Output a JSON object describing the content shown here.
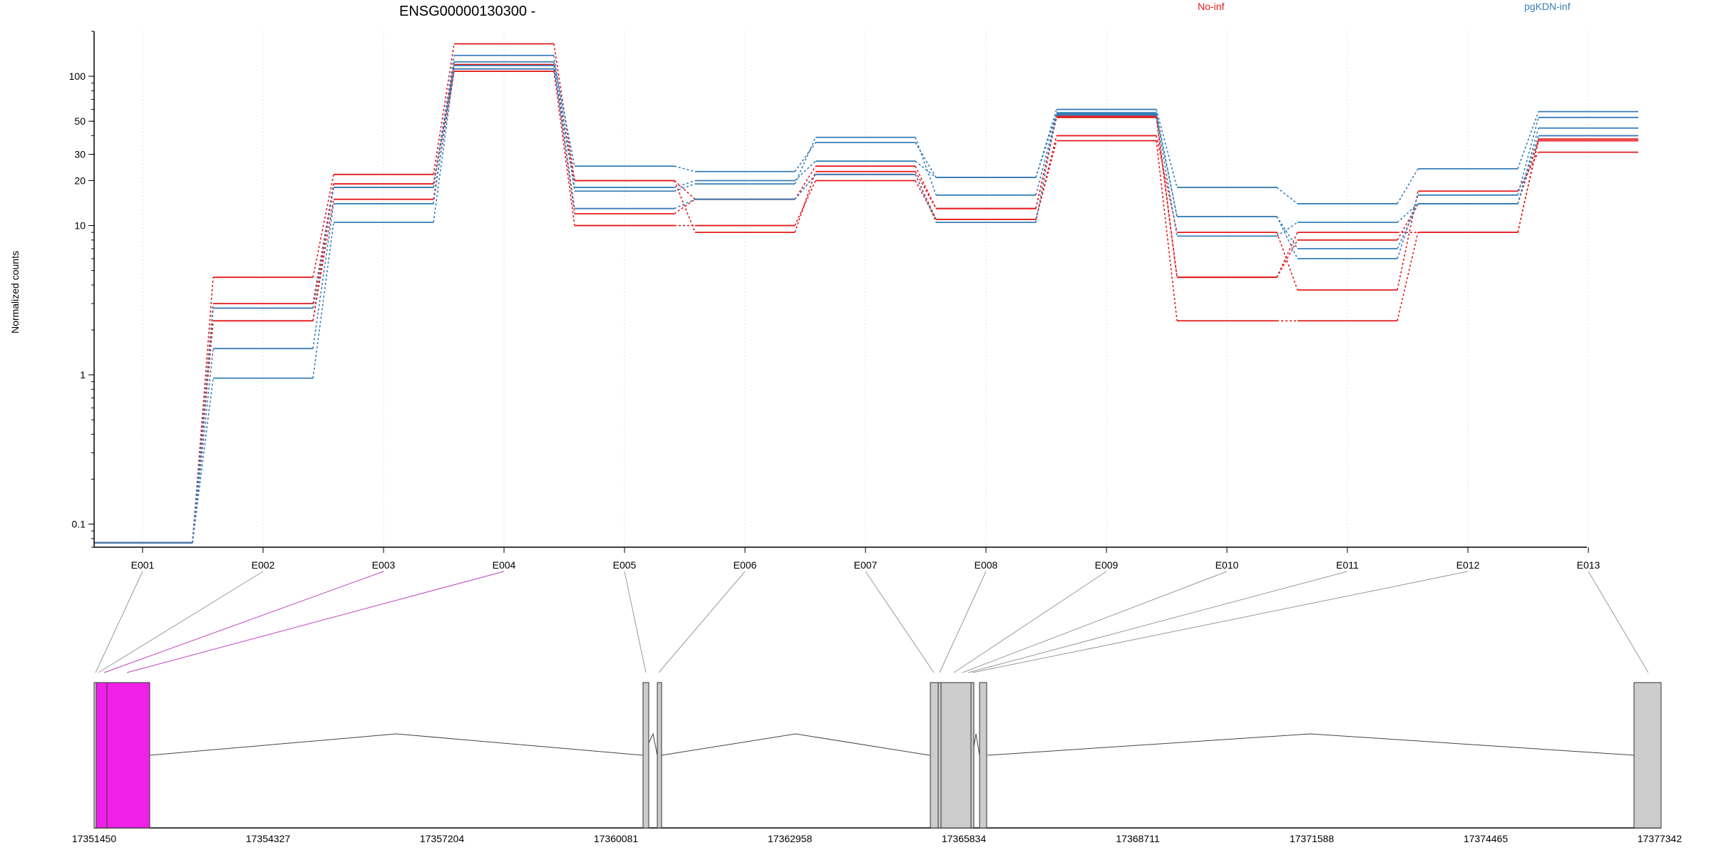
{
  "chart_data": {
    "type": "line",
    "title": "ENSG00000130300 -",
    "ylabel": "Normalized counts",
    "yscale": "log",
    "ylim": [
      0.07,
      200
    ],
    "ytick_labels": [
      "0.1",
      "1",
      "10",
      "20",
      "30",
      "50",
      "100"
    ],
    "ytick_values": [
      0.1,
      1,
      10,
      20,
      30,
      50,
      100
    ],
    "grid": "vertical",
    "legend_position": "top",
    "categories": [
      "E001",
      "E002",
      "E003",
      "E004",
      "E005",
      "E006",
      "E007",
      "E008",
      "E009",
      "E010",
      "E011",
      "E012",
      "E013"
    ],
    "legend": [
      {
        "name": "No-inf",
        "color": "#e41a1c"
      },
      {
        "name": "pgKDN-inf",
        "color": "#377eb8"
      }
    ],
    "series": [
      {
        "group": "No-inf",
        "color": "#e41a1c",
        "values": [
          0.075,
          4.5,
          22,
          165,
          20,
          15,
          25,
          13,
          53,
          4.5,
          9,
          9,
          38
        ]
      },
      {
        "group": "No-inf",
        "color": "#e41a1c",
        "values": [
          0.075,
          3.0,
          19,
          120,
          12,
          15,
          22,
          11,
          40,
          9,
          3.7,
          17,
          31
        ]
      },
      {
        "group": "No-inf",
        "color": "#e41a1c",
        "values": [
          0.075,
          2.3,
          15,
          108,
          10,
          10,
          20,
          11,
          37,
          2.3,
          2.3,
          9,
          37
        ]
      },
      {
        "group": "No-inf",
        "color": "#e41a1c",
        "values": [
          0.075,
          2.3,
          19,
          112,
          20,
          9,
          23,
          13,
          54,
          4.5,
          8,
          14,
          37
        ]
      },
      {
        "group": "pgKDN-inf",
        "color": "#377eb8",
        "values": [
          0.075,
          1.5,
          14,
          125,
          25,
          23,
          36,
          21,
          60,
          18,
          14,
          24,
          58
        ]
      },
      {
        "group": "pgKDN-inf",
        "color": "#377eb8",
        "values": [
          0.075,
          0.95,
          10.5,
          112,
          18,
          20,
          27,
          21,
          56,
          11.5,
          6,
          16,
          53
        ]
      },
      {
        "group": "pgKDN-inf",
        "color": "#377eb8",
        "values": [
          0.075,
          2.8,
          18,
          138,
          17,
          19,
          39,
          16,
          55,
          8.5,
          10.5,
          14,
          40
        ]
      },
      {
        "group": "pgKDN-inf",
        "color": "#377eb8",
        "values": [
          0.075,
          2.8,
          18,
          118,
          13,
          15,
          22,
          10.5,
          57,
          11.5,
          7,
          14,
          45
        ]
      }
    ],
    "gene_model": {
      "coordinate_labels": [
        "17351450",
        "17354327",
        "17357204",
        "17360081",
        "17362958",
        "17365834",
        "17368711",
        "17371588",
        "17374465",
        "17377342"
      ],
      "highlighted_exons": [
        "E003",
        "E004"
      ],
      "highlight_color": "#f020e8",
      "exon_color": "#cccccc"
    }
  }
}
